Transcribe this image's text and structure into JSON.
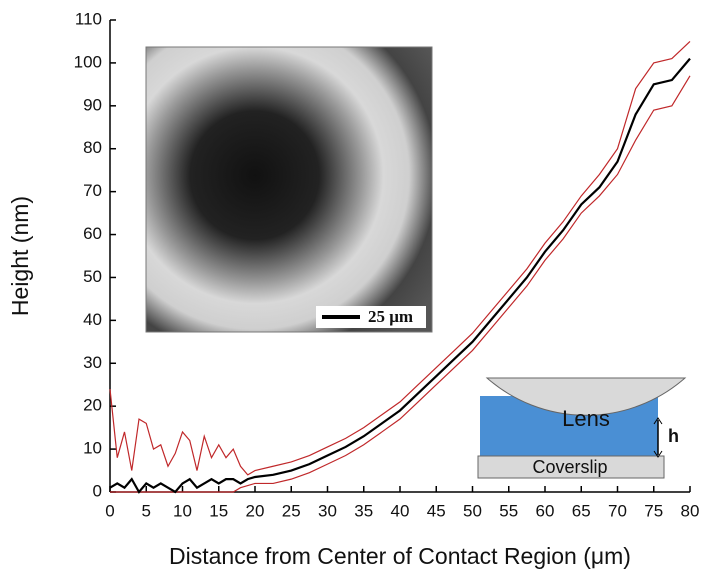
{
  "chart_data": {
    "type": "line",
    "x_label": "Distance from Center of Contact Region (μm)",
    "y_label": "Height (nm)",
    "x": [
      0,
      1,
      2,
      3,
      4,
      5,
      6,
      7,
      8,
      9,
      10,
      11,
      12,
      13,
      14,
      15,
      16,
      17,
      18,
      19,
      20,
      22.5,
      25,
      27.5,
      30,
      32.5,
      35,
      37.5,
      40,
      42.5,
      45,
      47.5,
      50,
      52.5,
      55,
      57.5,
      60,
      62.5,
      65,
      67.5,
      70,
      72.5,
      75,
      77.5,
      80
    ],
    "series": [
      {
        "color": "#c0282a",
        "values": [
          24,
          8,
          14,
          5,
          17,
          16,
          10,
          11,
          6,
          9,
          14,
          12,
          5,
          13,
          8,
          11,
          8,
          10,
          6,
          4,
          5,
          6,
          7,
          8.5,
          10.5,
          12.5,
          15,
          18,
          21,
          25,
          29,
          33,
          37,
          42,
          47,
          52,
          58,
          63,
          69,
          74,
          80,
          94,
          100,
          101,
          105
        ]
      },
      {
        "color": "#c0282a",
        "values": [
          0,
          0,
          0,
          0,
          0,
          0,
          0,
          0,
          0,
          0,
          0,
          0,
          0,
          0,
          0,
          0,
          0,
          0,
          1,
          1.5,
          2,
          2,
          3,
          4.5,
          6.5,
          8.5,
          11,
          14,
          17,
          21,
          25,
          29,
          33,
          38,
          43,
          48,
          54,
          59,
          65,
          69,
          74,
          82,
          89,
          90,
          97
        ]
      },
      {
        "color": "#000000",
        "values": [
          1,
          2,
          1,
          3,
          0,
          2,
          1,
          2,
          1,
          0,
          2,
          3,
          1,
          2,
          3,
          2,
          3,
          3,
          2,
          3,
          3.5,
          4,
          5,
          6.5,
          8.5,
          10.5,
          13,
          16,
          19,
          23,
          27,
          31,
          35,
          40,
          45,
          50,
          56,
          61,
          67,
          71,
          77,
          88,
          95,
          96,
          101
        ]
      }
    ],
    "xlim": [
      0,
      80
    ],
    "ylim": [
      0,
      110
    ],
    "xticks": [
      0,
      5,
      10,
      15,
      20,
      25,
      30,
      35,
      40,
      45,
      50,
      55,
      60,
      65,
      70,
      75,
      80
    ],
    "yticks": [
      0,
      10,
      20,
      30,
      40,
      50,
      60,
      70,
      80,
      90,
      100,
      110
    ],
    "annotations": {
      "scale_bar": "25 μm",
      "lens": "Lens",
      "height": "h",
      "coverslip": "Coverslip"
    }
  }
}
